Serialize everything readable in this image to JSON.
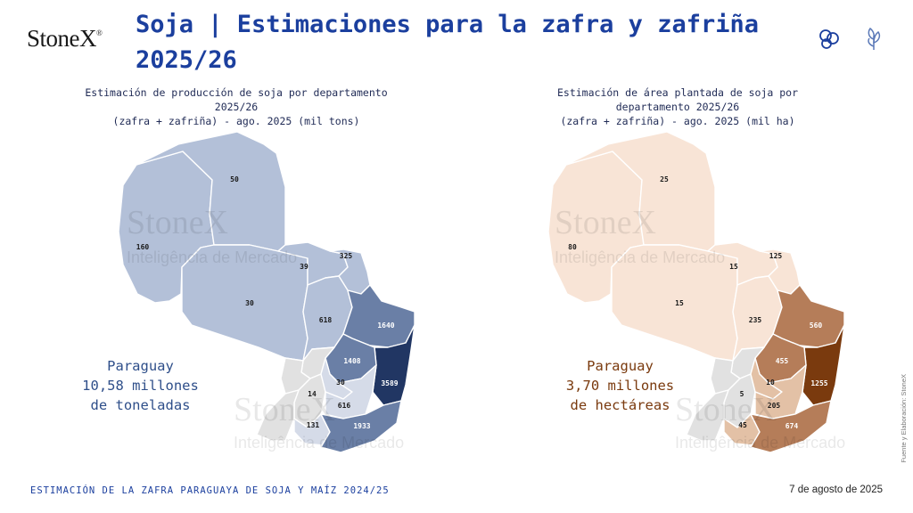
{
  "brand": {
    "logo_text": "StoneX",
    "logo_mark": "®"
  },
  "title": "Soja | Estimaciones para la zafra y zafriña 2025/26",
  "watermark": {
    "brand": "StoneX",
    "sub": "Inteligência de Mercado"
  },
  "left_map": {
    "title_lines": [
      "Estimación de producción de soja por departamento",
      "2025/26",
      "(zafra + zafriña) - ago. 2025 (mil tons)"
    ],
    "total_lines": [
      "Paraguay",
      "10,58 millones",
      "de toneladas"
    ],
    "total_color": "#2f4f8a",
    "labels": {
      "alto_paraguay": "50",
      "boqueron": "160",
      "pres_hayes": "30",
      "concepcion": "39",
      "amambay": "325",
      "san_pedro": "618",
      "canindeyu": "1640",
      "caaguazu": "1408",
      "alto_parana": "3589",
      "guaira": "30",
      "paraguari": "14",
      "caazapa": "616",
      "misiones": "131",
      "itapua": "1933"
    },
    "colors": {
      "light": "#b3c0d8",
      "mid": "#d5dbe8",
      "medium": "#6a7fa6",
      "dark": "#213663",
      "grey": "#e1e1e1"
    }
  },
  "right_map": {
    "title_lines": [
      "Estimación de área plantada de soja por",
      "departamento 2025/26",
      "(zafra + zafriña) - ago. 2025 (mil ha)"
    ],
    "total_lines": [
      "Paraguay",
      "3,70 millones",
      "de hectáreas"
    ],
    "total_color": "#7a3a0e",
    "labels": {
      "alto_paraguay": "25",
      "boqueron": "80",
      "pres_hayes": "15",
      "concepcion": "15",
      "amambay": "125",
      "san_pedro": "235",
      "canindeyu": "560",
      "caaguazu": "455",
      "alto_parana": "1255",
      "guaira": "10",
      "paraguari": "5",
      "caazapa": "205",
      "misiones": "45",
      "itapua": "674"
    },
    "colors": {
      "light": "#f8e4d6",
      "mid": "#e3c1a6",
      "medium": "#b57d59",
      "dark": "#7a3a0e",
      "grey": "#e1e1e1"
    }
  },
  "footer": {
    "left": "ESTIMACIÓN DE LA ZAFRA PARAGUAYA DE SOJA Y MAÍZ 2024/25",
    "right": "7 de agosto de 2025",
    "source": "Fuente y Elaboración: StoneX"
  },
  "icons": [
    "soybean-icon",
    "plant-icon"
  ]
}
